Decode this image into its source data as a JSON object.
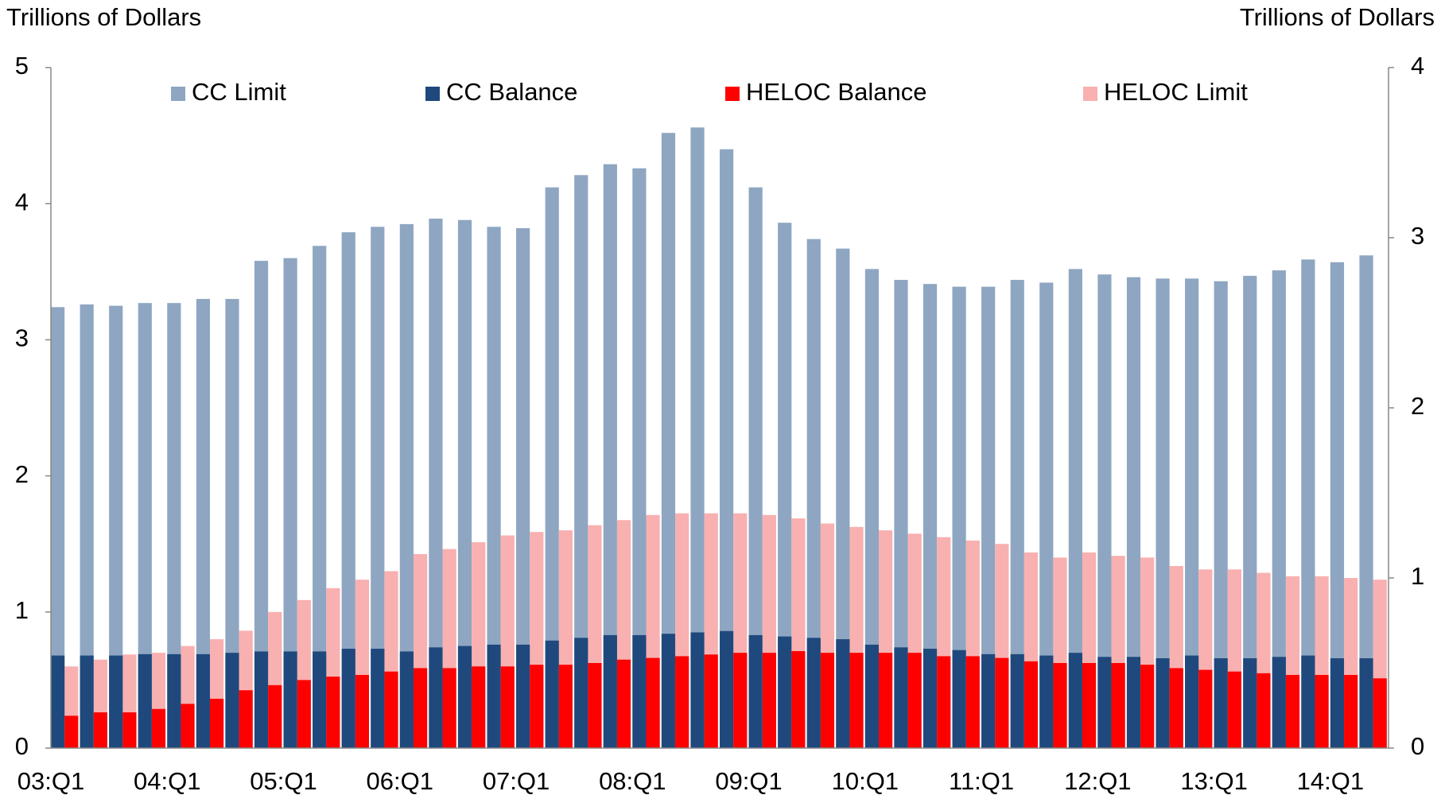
{
  "chart_data": {
    "type": "bar",
    "y_label": "Trillions of Dollars",
    "y2_label": "Trillions of Dollars",
    "categories": [
      "03:Q1",
      null,
      null,
      null,
      "04:Q1",
      null,
      null,
      null,
      "05:Q1",
      null,
      null,
      null,
      "06:Q1",
      null,
      null,
      null,
      "07:Q1",
      null,
      null,
      null,
      "08:Q1",
      null,
      null,
      null,
      "09:Q1",
      null,
      null,
      null,
      "10:Q1",
      null,
      null,
      null,
      "11:Q1",
      null,
      null,
      null,
      "12:Q1",
      null,
      null,
      null,
      "13:Q1",
      null,
      null,
      null,
      "14:Q1",
      null
    ],
    "series": [
      {
        "name": "CC Limit",
        "color": "#8ea6c1",
        "values": [
          3.24,
          3.26,
          3.25,
          3.27,
          3.27,
          3.3,
          3.3,
          3.58,
          3.6,
          3.69,
          3.79,
          3.83,
          3.85,
          3.89,
          3.88,
          3.83,
          3.82,
          4.12,
          4.21,
          4.29,
          4.26,
          4.52,
          4.56,
          4.4,
          4.12,
          3.86,
          3.74,
          3.67,
          3.52,
          3.44,
          3.41,
          3.39,
          3.39,
          3.44,
          3.42,
          3.52,
          3.48,
          3.46,
          3.45,
          3.45,
          3.43,
          3.47,
          3.51,
          3.59,
          3.57,
          3.62
        ]
      },
      {
        "name": "CC Balance",
        "color": "#1f497d",
        "values": [
          0.68,
          0.68,
          0.68,
          0.69,
          0.69,
          0.69,
          0.7,
          0.71,
          0.71,
          0.71,
          0.73,
          0.73,
          0.71,
          0.74,
          0.75,
          0.76,
          0.76,
          0.79,
          0.81,
          0.83,
          0.83,
          0.84,
          0.85,
          0.86,
          0.83,
          0.82,
          0.81,
          0.8,
          0.76,
          0.74,
          0.73,
          0.72,
          0.69,
          0.69,
          0.68,
          0.7,
          0.67,
          0.67,
          0.66,
          0.68,
          0.66,
          0.66,
          0.67,
          0.68,
          0.66,
          0.66
        ]
      },
      {
        "name": "HELOC Balance",
        "color": "#ff0000",
        "axis": "y2",
        "values": [
          0.19,
          0.21,
          0.21,
          0.23,
          0.26,
          0.29,
          0.34,
          0.37,
          0.4,
          0.42,
          0.43,
          0.45,
          0.47,
          0.47,
          0.48,
          0.48,
          0.49,
          0.49,
          0.5,
          0.52,
          0.53,
          0.54,
          0.55,
          0.56,
          0.56,
          0.57,
          0.56,
          0.56,
          0.56,
          0.56,
          0.54,
          0.54,
          0.53,
          0.51,
          0.5,
          0.5,
          0.5,
          0.49,
          0.47,
          0.46,
          0.45,
          0.44,
          0.43,
          0.43,
          0.43,
          0.41
        ]
      },
      {
        "name": "HELOC Limit",
        "color": "#f9b0b0",
        "axis": "y2",
        "values": [
          0.48,
          0.52,
          0.55,
          0.56,
          0.6,
          0.64,
          0.69,
          0.8,
          0.87,
          0.94,
          0.99,
          1.04,
          1.14,
          1.17,
          1.21,
          1.25,
          1.27,
          1.28,
          1.31,
          1.34,
          1.37,
          1.38,
          1.38,
          1.38,
          1.37,
          1.35,
          1.32,
          1.3,
          1.28,
          1.26,
          1.24,
          1.22,
          1.2,
          1.15,
          1.12,
          1.15,
          1.13,
          1.12,
          1.07,
          1.05,
          1.05,
          1.03,
          1.01,
          1.01,
          1.0,
          0.99
        ]
      }
    ],
    "ylim": [
      0,
      5
    ],
    "yticks": [
      0,
      1,
      2,
      3,
      4,
      5
    ],
    "y2lim": [
      0,
      4
    ],
    "y2ticks": [
      0,
      1,
      2,
      3,
      4
    ],
    "legend": "top"
  }
}
